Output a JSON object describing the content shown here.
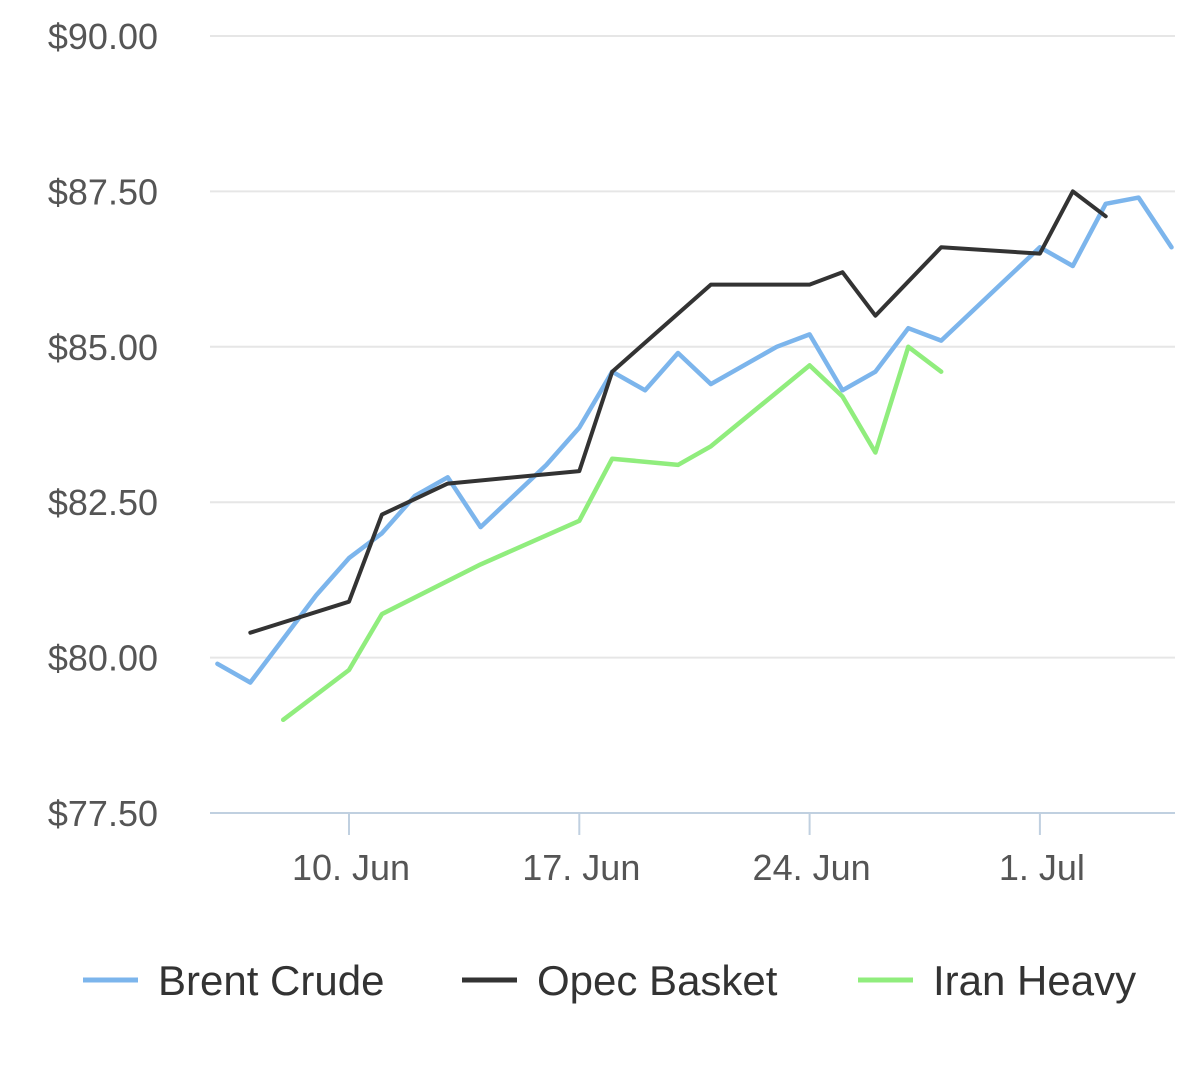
{
  "chart_data": {
    "type": "line",
    "title": "",
    "xlabel": "",
    "ylabel": "",
    "ylim": [
      77.5,
      90
    ],
    "yticks": [
      "$90.00",
      "$87.50",
      "$85.00",
      "$82.50",
      "$80.00",
      "$77.50"
    ],
    "ytick_values": [
      90,
      87.5,
      85,
      82.5,
      80,
      77.5
    ],
    "xticks": [
      "10. Jun",
      "17. Jun",
      "24. Jun",
      "1. Jul"
    ],
    "xtick_values": [
      "2024-06-10",
      "2024-06-17",
      "2024-06-24",
      "2024-07-01"
    ],
    "grid": true,
    "legend_position": "bottom",
    "series": [
      {
        "name": "Brent Crude",
        "color": "#7cb5ec",
        "points": [
          [
            "2024-06-06",
            79.9
          ],
          [
            "2024-06-07",
            79.6
          ],
          [
            "2024-06-08",
            80.3
          ],
          [
            "2024-06-09",
            81.0
          ],
          [
            "2024-06-10",
            81.6
          ],
          [
            "2024-06-11",
            82.0
          ],
          [
            "2024-06-12",
            82.6
          ],
          [
            "2024-06-13",
            82.9
          ],
          [
            "2024-06-14",
            82.1
          ],
          [
            "2024-06-15",
            82.6
          ],
          [
            "2024-06-16",
            83.1
          ],
          [
            "2024-06-17",
            83.7
          ],
          [
            "2024-06-18",
            84.6
          ],
          [
            "2024-06-19",
            84.3
          ],
          [
            "2024-06-20",
            84.9
          ],
          [
            "2024-06-21",
            84.4
          ],
          [
            "2024-06-22",
            84.7
          ],
          [
            "2024-06-23",
            85.0
          ],
          [
            "2024-06-24",
            85.2
          ],
          [
            "2024-06-25",
            84.3
          ],
          [
            "2024-06-26",
            84.6
          ],
          [
            "2024-06-27",
            85.3
          ],
          [
            "2024-06-28",
            85.1
          ],
          [
            "2024-06-29",
            85.6
          ],
          [
            "2024-06-30",
            86.1
          ],
          [
            "2024-07-01",
            86.6
          ],
          [
            "2024-07-02",
            86.3
          ],
          [
            "2024-07-03",
            87.3
          ],
          [
            "2024-07-04",
            87.4
          ],
          [
            "2024-07-05",
            86.6
          ]
        ]
      },
      {
        "name": "Opec Basket",
        "color": "#333333",
        "points": [
          [
            "2024-06-07",
            80.4
          ],
          [
            "2024-06-10",
            80.9
          ],
          [
            "2024-06-11",
            82.3
          ],
          [
            "2024-06-13",
            82.8
          ],
          [
            "2024-06-17",
            83.0
          ],
          [
            "2024-06-18",
            84.6
          ],
          [
            "2024-06-21",
            86.0
          ],
          [
            "2024-06-24",
            86.0
          ],
          [
            "2024-06-25",
            86.2
          ],
          [
            "2024-06-26",
            85.5
          ],
          [
            "2024-06-28",
            86.6
          ],
          [
            "2024-07-01",
            86.5
          ],
          [
            "2024-07-02",
            87.5
          ],
          [
            "2024-07-03",
            87.1
          ]
        ]
      },
      {
        "name": "Iran Heavy",
        "color": "#90ed7d",
        "points": [
          [
            "2024-06-08",
            79.0
          ],
          [
            "2024-06-10",
            79.8
          ],
          [
            "2024-06-11",
            80.7
          ],
          [
            "2024-06-14",
            81.5
          ],
          [
            "2024-06-17",
            82.2
          ],
          [
            "2024-06-18",
            83.2
          ],
          [
            "2024-06-20",
            83.1
          ],
          [
            "2024-06-21",
            83.4
          ],
          [
            "2024-06-24",
            84.7
          ],
          [
            "2024-06-25",
            84.2
          ],
          [
            "2024-06-26",
            83.3
          ],
          [
            "2024-06-27",
            85.0
          ],
          [
            "2024-06-28",
            84.6
          ]
        ]
      }
    ]
  }
}
